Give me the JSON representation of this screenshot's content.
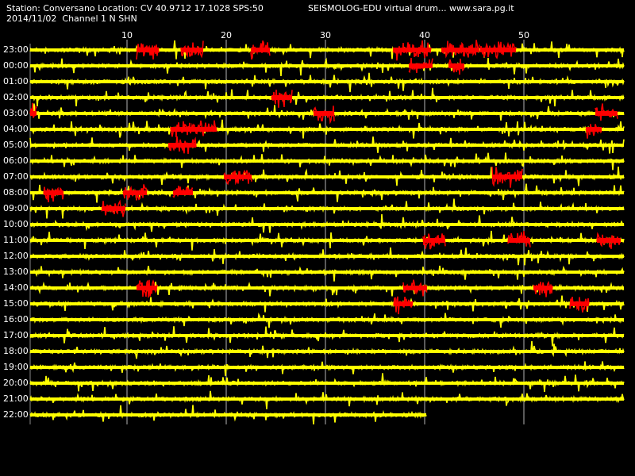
{
  "header": {
    "station_line": "Station: Conversano Location: CV 40.9712 17.1028 SPS:50",
    "date_line": "2014/11/02  Channel 1 N SHN",
    "title": "SEISMOLOG-EDU virtual drum... www.sara.pg.it"
  },
  "minute_ticks": [
    "10",
    "20",
    "30",
    "40",
    "50"
  ],
  "hour_labels": [
    "23:00",
    "00:00",
    "01:00",
    "02:00",
    "03:00",
    "04:00",
    "05:00",
    "06:00",
    "07:00",
    "08:00",
    "09:00",
    "10:00",
    "11:00",
    "12:00",
    "13:00",
    "14:00",
    "15:00",
    "16:00",
    "17:00",
    "18:00",
    "19:00",
    "20:00",
    "21:00",
    "22:00"
  ],
  "colors": {
    "background": "#000000",
    "trace": "#ffff00",
    "event": "#ff0000",
    "gridline": "#ffffff",
    "text": "#ffffff"
  },
  "last_row_end_minute": 40
}
